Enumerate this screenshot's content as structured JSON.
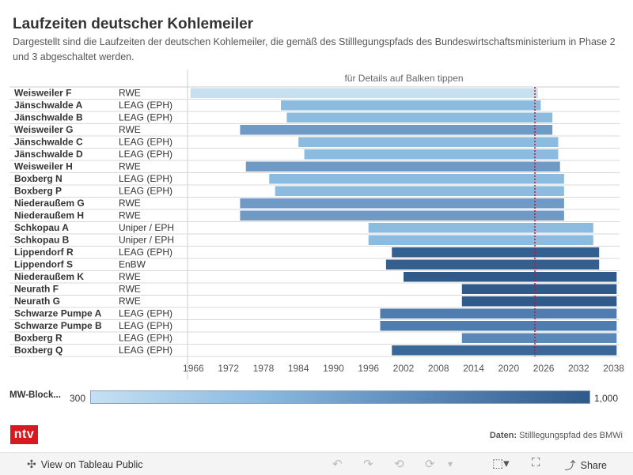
{
  "title": "Laufzeiten deutscher Kohlemeiler",
  "subtitle": "Dargestellt sind die Laufzeiten der deutschen Kohlemeiler, die gemäß des Stilllegungspfads des Bundeswirtschaftsministerium in Phase 2 und 3 abgeschaltet werden.",
  "hint": "für Details auf Balken tippen",
  "legend": {
    "label": "MW-Block...",
    "min": "300",
    "max": "1,000"
  },
  "logo": "ntv",
  "source": {
    "prefix": "Daten:",
    "text": "Stilllegungspfad des BMWi"
  },
  "footer": {
    "view_label": "View on Tableau Public",
    "share_label": "Share",
    "icons": [
      "tableau-icon",
      "undo-icon",
      "redo-icon",
      "revert-icon",
      "refresh-icon",
      "download-icon",
      "fullscreen-icon",
      "share-icon"
    ]
  },
  "colors": {
    "light": "#c6e0f2",
    "mid_light": "#8cbbe0",
    "mid": "#5a88b8",
    "dark": "#2f5a8a",
    "reference_line": "#d0102a",
    "logo": "#d61a1f"
  },
  "chart_data": {
    "type": "gantt",
    "x_ticks": [
      1966,
      1972,
      1978,
      1984,
      1990,
      1996,
      2002,
      2008,
      2014,
      2020,
      2026,
      2032,
      2038
    ],
    "xlim": [
      1965,
      2039
    ],
    "reference_line": 2024.5,
    "rows": [
      {
        "name": "Weisweiler F",
        "operator": "RWE",
        "start": 1965.5,
        "end": 2025,
        "color": "#c6e0f2"
      },
      {
        "name": "Jänschwalde A",
        "operator": "LEAG (EPH)",
        "start": 1981,
        "end": 2025.5,
        "color": "#8cbbe0"
      },
      {
        "name": "Jänschwalde B",
        "operator": "LEAG (EPH)",
        "start": 1982,
        "end": 2027.5,
        "color": "#8cbbe0"
      },
      {
        "name": "Weisweiler G",
        "operator": "RWE",
        "start": 1974,
        "end": 2027.5,
        "color": "#6f9ac5"
      },
      {
        "name": "Jänschwalde C",
        "operator": "LEAG (EPH)",
        "start": 1984,
        "end": 2028.5,
        "color": "#8cbbe0"
      },
      {
        "name": "Jänschwalde D",
        "operator": "LEAG (EPH)",
        "start": 1985,
        "end": 2028.5,
        "color": "#8cbbe0"
      },
      {
        "name": "Weisweiler H",
        "operator": "RWE",
        "start": 1975,
        "end": 2028.8,
        "color": "#6f9ac5"
      },
      {
        "name": "Boxberg N",
        "operator": "LEAG (EPH)",
        "start": 1979,
        "end": 2029.5,
        "color": "#8cbbe0"
      },
      {
        "name": "Boxberg P",
        "operator": "LEAG (EPH)",
        "start": 1980,
        "end": 2029.5,
        "color": "#8cbbe0"
      },
      {
        "name": "Niederaußem G",
        "operator": "RWE",
        "start": 1974,
        "end": 2029.5,
        "color": "#6f9ac5"
      },
      {
        "name": "Niederaußem H",
        "operator": "RWE",
        "start": 1974,
        "end": 2029.5,
        "color": "#6f9ac5"
      },
      {
        "name": "Schkopau A",
        "operator": "Uniper / EPH",
        "start": 1996,
        "end": 2034.5,
        "color": "#8cbbe0"
      },
      {
        "name": "Schkopau B",
        "operator": "Uniper / EPH",
        "start": 1996,
        "end": 2034.5,
        "color": "#8cbbe0"
      },
      {
        "name": "Lippendorf R",
        "operator": "LEAG (EPH)",
        "start": 2000,
        "end": 2035.5,
        "color": "#345f8f"
      },
      {
        "name": "Lippendorf S",
        "operator": "EnBW",
        "start": 1999,
        "end": 2035.5,
        "color": "#345f8f"
      },
      {
        "name": "Niederaußem K",
        "operator": "RWE",
        "start": 2002,
        "end": 2038.5,
        "color": "#2f5a8a"
      },
      {
        "name": "Neurath F",
        "operator": "RWE",
        "start": 2012,
        "end": 2038.5,
        "color": "#2f5a8a"
      },
      {
        "name": "Neurath G",
        "operator": "RWE",
        "start": 2012,
        "end": 2038.5,
        "color": "#2f5a8a"
      },
      {
        "name": "Schwarze Pumpe A",
        "operator": "LEAG (EPH)",
        "start": 1998,
        "end": 2038.5,
        "color": "#4f7db0"
      },
      {
        "name": "Schwarze Pumpe B",
        "operator": "LEAG (EPH)",
        "start": 1998,
        "end": 2038.5,
        "color": "#4f7db0"
      },
      {
        "name": "Boxberg R",
        "operator": "LEAG (EPH)",
        "start": 2012,
        "end": 2038.5,
        "color": "#5a88b8"
      },
      {
        "name": "Boxberg Q",
        "operator": "LEAG (EPH)",
        "start": 2000,
        "end": 2038.5,
        "color": "#3a6797"
      }
    ]
  }
}
